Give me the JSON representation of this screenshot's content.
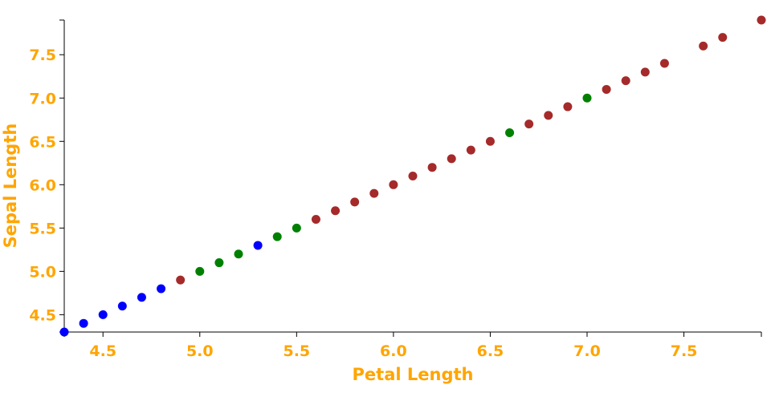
{
  "colors": {
    "text": "#ffa500",
    "axis": "#000000"
  },
  "chart_data": {
    "type": "scatter",
    "title": "",
    "xlabel": "Petal Length",
    "ylabel": "Sepal Length",
    "xlim": [
      4.3,
      7.9
    ],
    "ylim": [
      4.3,
      7.9
    ],
    "x_ticks": [
      "4.5",
      "5.0",
      "5.5",
      "6.0",
      "6.5",
      "7.0",
      "7.5"
    ],
    "y_ticks": [
      "4.5",
      "5.0",
      "5.5",
      "6.0",
      "6.5",
      "7.0",
      "7.5"
    ],
    "grid": false,
    "legend": "none",
    "series": [
      {
        "color": "#0000ff",
        "points": [
          {
            "x": 4.3,
            "y": 4.3
          },
          {
            "x": 4.4,
            "y": 4.4
          },
          {
            "x": 4.5,
            "y": 4.5
          },
          {
            "x": 4.6,
            "y": 4.6
          },
          {
            "x": 4.7,
            "y": 4.7
          },
          {
            "x": 4.8,
            "y": 4.8
          },
          {
            "x": 5.3,
            "y": 5.3
          }
        ]
      },
      {
        "color": "#008000",
        "points": [
          {
            "x": 5.0,
            "y": 5.0
          },
          {
            "x": 5.1,
            "y": 5.1
          },
          {
            "x": 5.2,
            "y": 5.2
          },
          {
            "x": 5.4,
            "y": 5.4
          },
          {
            "x": 5.5,
            "y": 5.5
          },
          {
            "x": 6.6,
            "y": 6.6
          },
          {
            "x": 7.0,
            "y": 7.0
          }
        ]
      },
      {
        "color": "#a52a2a",
        "points": [
          {
            "x": 4.9,
            "y": 4.9
          },
          {
            "x": 5.6,
            "y": 5.6
          },
          {
            "x": 5.7,
            "y": 5.7
          },
          {
            "x": 5.8,
            "y": 5.8
          },
          {
            "x": 5.9,
            "y": 5.9
          },
          {
            "x": 6.0,
            "y": 6.0
          },
          {
            "x": 6.1,
            "y": 6.1
          },
          {
            "x": 6.2,
            "y": 6.2
          },
          {
            "x": 6.3,
            "y": 6.3
          },
          {
            "x": 6.4,
            "y": 6.4
          },
          {
            "x": 6.5,
            "y": 6.5
          },
          {
            "x": 6.7,
            "y": 6.7
          },
          {
            "x": 6.8,
            "y": 6.8
          },
          {
            "x": 6.9,
            "y": 6.9
          },
          {
            "x": 7.1,
            "y": 7.1
          },
          {
            "x": 7.2,
            "y": 7.2
          },
          {
            "x": 7.3,
            "y": 7.3
          },
          {
            "x": 7.4,
            "y": 7.4
          },
          {
            "x": 7.6,
            "y": 7.6
          },
          {
            "x": 7.7,
            "y": 7.7
          },
          {
            "x": 7.9,
            "y": 7.9
          }
        ]
      }
    ]
  }
}
